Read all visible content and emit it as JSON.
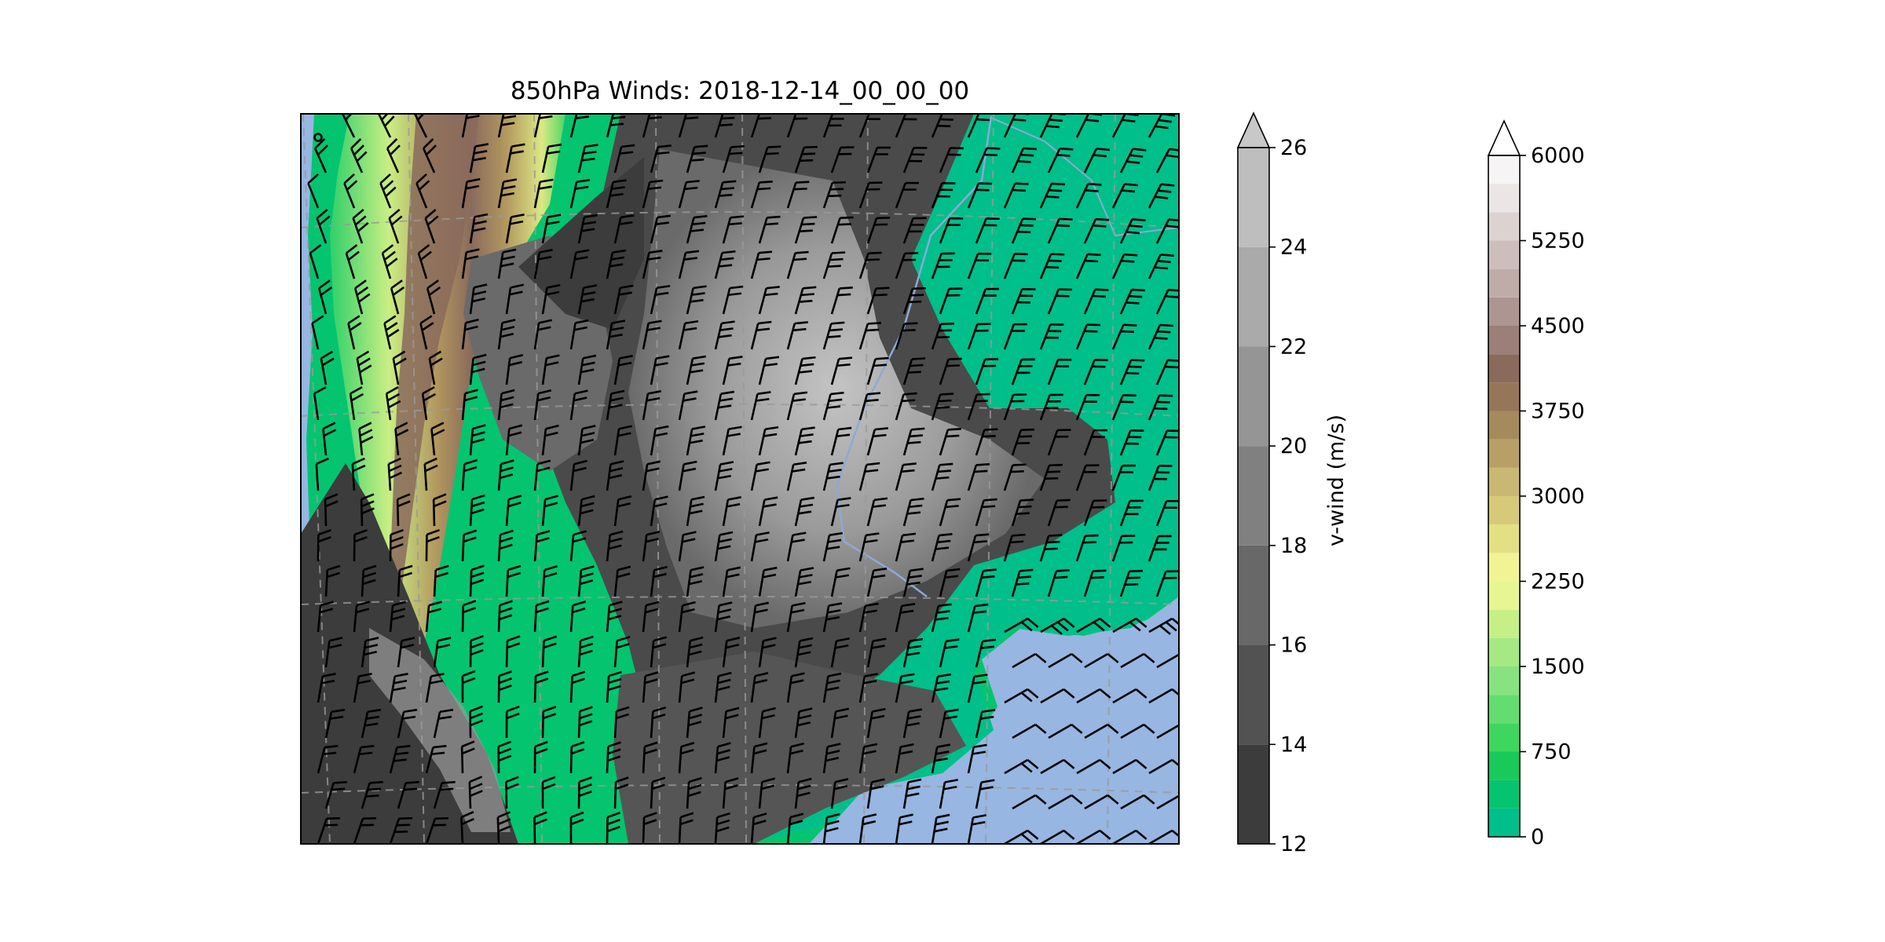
{
  "chart_data": [
    {
      "type": "heatmap",
      "title": "850hPa Winds: 2018-12-14_00_00_00",
      "layers": [
        "terrain height filled contours",
        "v-wind filled contours (grayscale)",
        "wind barbs",
        "coastlines and country borders",
        "lat/lon gridlines (dashed)"
      ],
      "grid": true,
      "ocean_color": "#97b6e1",
      "barb_color": "#000000",
      "border_color": "#8ea8d8"
    },
    {
      "type": "colorbar",
      "label": "v-wind (m/s)",
      "ticks": [
        "12",
        "14",
        "16",
        "18",
        "20",
        "22",
        "24",
        "26"
      ],
      "levels": [
        12,
        14,
        16,
        18,
        20,
        22,
        24,
        26
      ],
      "colors": [
        "#3c3c3c",
        "#525252",
        "#686868",
        "#808080",
        "#959595",
        "#aaaaaa",
        "#bebebe"
      ],
      "extend": "max",
      "extend_color": "#c8c8c8"
    },
    {
      "type": "colorbar",
      "label": "",
      "ticks": [
        "0",
        "750",
        "1500",
        "2250",
        "3000",
        "3750",
        "4500",
        "5250",
        "6000"
      ],
      "levels": [
        0,
        750,
        1500,
        2250,
        3000,
        3750,
        4500,
        5250,
        6000
      ],
      "colors": [
        "#00bf8a",
        "#05c46f",
        "#19c95a",
        "#3ed65d",
        "#63dd6f",
        "#86e37f",
        "#a6e983",
        "#c5ef87",
        "#e8f593",
        "#f2f394",
        "#e3e084",
        "#d7c97a",
        "#c9b774",
        "#b79f66",
        "#a58a5c",
        "#967658",
        "#8a6a5c",
        "#9b7f78",
        "#ad9591",
        "#bfaca8",
        "#cdbebc",
        "#dcd2d0",
        "#ebe6e5",
        "#f6f4f4"
      ],
      "extend": "max",
      "extend_color": "#ffffff"
    }
  ]
}
